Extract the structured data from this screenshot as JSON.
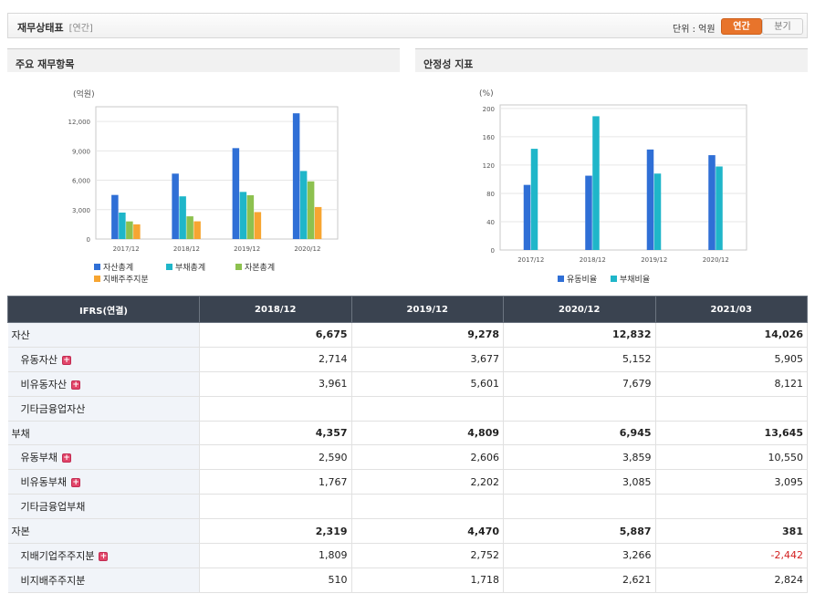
{
  "header": {
    "title": "재무상태표",
    "subtitle": "[연간]",
    "unit": "단위 : 억원",
    "toggle_on": "연간",
    "toggle_off": "분기"
  },
  "panels": {
    "left_title": "주요 재무항목",
    "right_title": "안정성 지표"
  },
  "chart_data": [
    {
      "type": "bar",
      "ylabel": "(억원)",
      "categories": [
        "2017/12",
        "2018/12",
        "2019/12",
        "2020/12"
      ],
      "ylim": [
        0,
        13500
      ],
      "yticks": [
        "0",
        "3,000",
        "6,000",
        "9,000",
        "12,000"
      ],
      "series": [
        {
          "name": "자산총계",
          "color": "#2f6fd6",
          "values": [
            4500,
            6675,
            9278,
            12832
          ]
        },
        {
          "name": "부채총계",
          "color": "#1fb6c9",
          "values": [
            2700,
            4357,
            4809,
            6945
          ]
        },
        {
          "name": "자본총계",
          "color": "#8dc14f",
          "values": [
            1800,
            2319,
            4470,
            5887
          ]
        },
        {
          "name": "지배주주지분",
          "color": "#f7a531",
          "values": [
            1500,
            1809,
            2752,
            3266
          ]
        }
      ],
      "legend": "bottom"
    },
    {
      "type": "bar",
      "ylabel": "(%)",
      "categories": [
        "2017/12",
        "2018/12",
        "2019/12",
        "2020/12"
      ],
      "ylim": [
        0,
        205
      ],
      "yticks": [
        "0",
        "40",
        "80",
        "120",
        "160",
        "200"
      ],
      "series": [
        {
          "name": "유동비율",
          "color": "#2f6fd6",
          "values": [
            92,
            105,
            142,
            134
          ]
        },
        {
          "name": "부채비율",
          "color": "#1fb6c9",
          "values": [
            143,
            189,
            108,
            118
          ]
        }
      ],
      "legend": "bottom"
    }
  ],
  "table": {
    "head": [
      "IFRS(연결)",
      "2018/12",
      "2019/12",
      "2020/12",
      "2021/03"
    ],
    "rows": [
      {
        "label": "자산",
        "main": true,
        "plus": false,
        "values": [
          "6,675",
          "9,278",
          "12,832",
          "14,026"
        ]
      },
      {
        "label": "유동자산",
        "main": false,
        "plus": true,
        "values": [
          "2,714",
          "3,677",
          "5,152",
          "5,905"
        ]
      },
      {
        "label": "비유동자산",
        "main": false,
        "plus": true,
        "values": [
          "3,961",
          "5,601",
          "7,679",
          "8,121"
        ]
      },
      {
        "label": "기타금융업자산",
        "main": false,
        "plus": false,
        "values": [
          "",
          "",
          "",
          ""
        ]
      },
      {
        "label": "부채",
        "main": true,
        "plus": false,
        "values": [
          "4,357",
          "4,809",
          "6,945",
          "13,645"
        ]
      },
      {
        "label": "유동부채",
        "main": false,
        "plus": true,
        "values": [
          "2,590",
          "2,606",
          "3,859",
          "10,550"
        ]
      },
      {
        "label": "비유동부채",
        "main": false,
        "plus": true,
        "values": [
          "1,767",
          "2,202",
          "3,085",
          "3,095"
        ]
      },
      {
        "label": "기타금융업부채",
        "main": false,
        "plus": false,
        "values": [
          "",
          "",
          "",
          ""
        ]
      },
      {
        "label": "자본",
        "main": true,
        "plus": false,
        "values": [
          "2,319",
          "4,470",
          "5,887",
          "381"
        ]
      },
      {
        "label": "지배기업주주지분",
        "main": false,
        "plus": true,
        "values": [
          "1,809",
          "2,752",
          "3,266",
          "-2,442"
        ]
      },
      {
        "label": "비지배주주지분",
        "main": false,
        "plus": false,
        "values": [
          "510",
          "1,718",
          "2,621",
          "2,824"
        ]
      }
    ]
  }
}
